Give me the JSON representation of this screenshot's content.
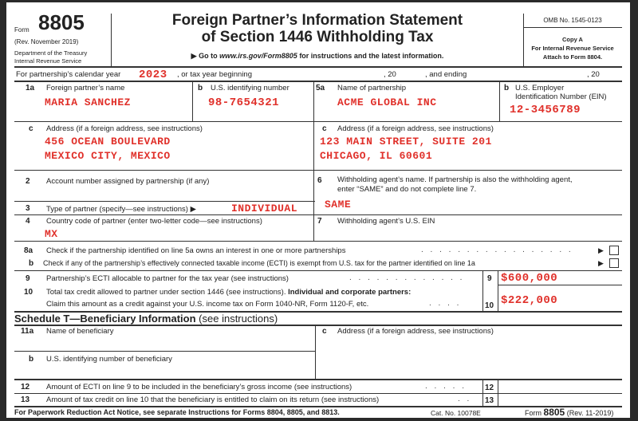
{
  "header": {
    "form_word": "Form",
    "form_number": "8805",
    "revision": "(Rev. November 2019)",
    "department": "Department of the Treasury",
    "service": "Internal Revenue Service",
    "title_line1": "Foreign Partner’s Information Statement",
    "title_line2": "of Section 1446 Withholding Tax",
    "goto_prefix": "Go to",
    "goto_url": "www.irs.gov/Form8805",
    "goto_suffix": "for instructions and the latest information.",
    "omb": "OMB No. 1545-0123",
    "copy": "Copy A",
    "copy_for": "For Internal Revenue Service",
    "attach": "Attach to Form 8804."
  },
  "tax_year": {
    "label": "For partnership’s calendar year",
    "year": "2023",
    "or_label": ", or tax year beginning",
    "comma20a": ", 20",
    "and_ending": ", and ending",
    "comma20b": ", 20"
  },
  "lines": {
    "l1a": {
      "num": "1a",
      "label": "Foreign partner’s name",
      "value": "MARIA SANCHEZ"
    },
    "l1b": {
      "num": "b",
      "label": "U.S. identifying number",
      "value": "98-7654321"
    },
    "l5a": {
      "num": "5a",
      "label": "Name of partnership",
      "value": "ACME GLOBAL INC"
    },
    "l5b": {
      "num": "b",
      "label1": "U.S. Employer",
      "label2": "Identification Number (EIN)",
      "value": "12-3456789"
    },
    "l1c": {
      "num": "c",
      "label": "Address (if a foreign address, see instructions)",
      "value1": "456 OCEAN BOULEVARD",
      "value2": "MEXICO CITY, MEXICO"
    },
    "l5c": {
      "num": "c",
      "label": "Address (if a foreign address, see instructions)",
      "value1": "123 MAIN STREET, SUITE 201",
      "value2": "CHICAGO, IL 60601"
    },
    "l2": {
      "num": "2",
      "label": "Account number assigned by partnership (if any)"
    },
    "l6": {
      "num": "6",
      "label1": "Withholding agent’s name. If partnership is also the withholding agent,",
      "label2": "enter “SAME” and do not complete line 7.",
      "value": "SAME"
    },
    "l3": {
      "num": "3",
      "label": "Type of partner (specify—see instructions) ▶",
      "value": "INDIVIDUAL"
    },
    "l4": {
      "num": "4",
      "label": "Country code of partner (enter two-letter code—see instructions)",
      "value": "MX"
    },
    "l7": {
      "num": "7",
      "label": "Withholding agent’s U.S. EIN"
    },
    "l8a": {
      "num": "8a",
      "label": "Check if the partnership identified on line 5a owns an interest in one or more partnerships",
      "checked": false
    },
    "l8b": {
      "num": "b",
      "label": "Check if any of the partnership’s effectively connected taxable income (ECTI) is exempt from U.S. tax for the partner identified on line 1a",
      "checked": false
    },
    "l9": {
      "num": "9",
      "label": "Partnership’s ECTI allocable to partner for the tax year (see instructions)",
      "box": "9",
      "value": "$600,000"
    },
    "l10": {
      "num": "10",
      "label1": "Total tax credit allowed to partner under section 1446 (see instructions).",
      "label1_bold": "Individual and corporate partners:",
      "label2": "Claim this amount as a credit against your U.S. income tax on Form 1040-NR, Form 1120-F, etc.",
      "box": "10",
      "value": "$222,000"
    }
  },
  "schedule_t": {
    "title": "Schedule T—Beneficiary Information",
    "title_note": "(see instructions)",
    "l11a": {
      "num": "11a",
      "label": "Name of beneficiary"
    },
    "l11b": {
      "num": "b",
      "label": "U.S. identifying number of beneficiary"
    },
    "l11c": {
      "num": "c",
      "label": "Address (if a foreign address, see instructions)"
    },
    "l12": {
      "num": "12",
      "label": "Amount of ECTI on line 9 to be included in the beneficiary’s gross income (see instructions)",
      "box": "12"
    },
    "l13": {
      "num": "13",
      "label": "Amount of tax credit on line 10 that the beneficiary is entitled to claim on its return (see instructions)",
      "box": "13"
    }
  },
  "footer": {
    "notice": "For Paperwork Reduction Act Notice, see separate Instructions for Forms 8804, 8805, and 8813.",
    "cat": "Cat. No. 10078E",
    "form_word": "Form",
    "form_number": "8805",
    "rev": "(Rev. 11-2019)"
  }
}
